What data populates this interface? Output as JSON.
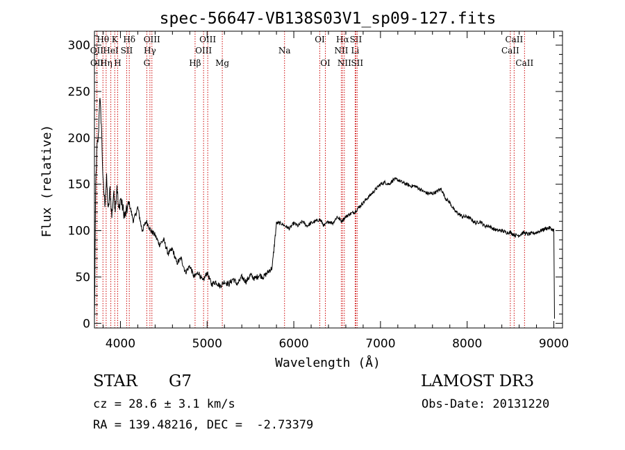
{
  "chart_data": {
    "type": "line",
    "title": "spec-56647-VB138S03V1_sp09-127.fits",
    "xlabel": "Wavelength (Å)",
    "ylabel": "Flux (relative)",
    "xlim": [
      3700,
      9100
    ],
    "ylim": [
      -5,
      315
    ],
    "x_ticks": [
      4000,
      5000,
      6000,
      7000,
      8000,
      9000
    ],
    "y_ticks": [
      0,
      50,
      100,
      150,
      200,
      250,
      300
    ],
    "grid": false,
    "line_color": "#000000",
    "marker_color": "#cc0000",
    "series": [
      {
        "x": [
          3700,
          3715,
          3730,
          3745,
          3760,
          3780,
          3800,
          3820,
          3840,
          3860,
          3880,
          3900,
          3920,
          3940,
          3960,
          3980,
          4000,
          4050,
          4100,
          4150,
          4200,
          4250,
          4300,
          4350,
          4400,
          4450,
          4500,
          4550,
          4600,
          4650,
          4700,
          4750,
          4800,
          4850,
          4900,
          4950,
          5000,
          5050,
          5100,
          5150,
          5200,
          5250,
          5300,
          5350,
          5400,
          5450,
          5500,
          5550,
          5600,
          5650,
          5700,
          5750,
          5800,
          5850,
          5900,
          5950,
          6000,
          6050,
          6100,
          6150,
          6200,
          6250,
          6300,
          6350,
          6400,
          6450,
          6500,
          6550,
          6600,
          6650,
          6700,
          6750,
          6800,
          6850,
          6900,
          6950,
          7000,
          7050,
          7100,
          7150,
          7200,
          7250,
          7300,
          7350,
          7400,
          7450,
          7500,
          7550,
          7600,
          7650,
          7700,
          7750,
          7800,
          7850,
          7900,
          7950,
          8000,
          8050,
          8100,
          8150,
          8200,
          8250,
          8300,
          8350,
          8400,
          8450,
          8500,
          8550,
          8600,
          8650,
          8700,
          8750,
          8800,
          8850,
          8900,
          8950,
          9000,
          9008
        ],
        "y": [
          2,
          150,
          190,
          200,
          245,
          215,
          150,
          130,
          155,
          120,
          145,
          115,
          140,
          125,
          150,
          120,
          135,
          115,
          130,
          110,
          125,
          100,
          110,
          100,
          95,
          85,
          90,
          75,
          80,
          65,
          70,
          55,
          62,
          50,
          55,
          45,
          55,
          42,
          45,
          40,
          45,
          42,
          48,
          42,
          50,
          45,
          52,
          48,
          52,
          50,
          55,
          60,
          108,
          108,
          105,
          102,
          108,
          105,
          110,
          105,
          108,
          110,
          112,
          105,
          110,
          108,
          115,
          110,
          115,
          118,
          120,
          125,
          130,
          135,
          140,
          145,
          150,
          152,
          150,
          155,
          155,
          152,
          150,
          148,
          148,
          145,
          142,
          140,
          140,
          142,
          145,
          135,
          130,
          122,
          118,
          115,
          115,
          112,
          108,
          110,
          105,
          105,
          102,
          100,
          100,
          98,
          98,
          95,
          95,
          98,
          96,
          97,
          98,
          100,
          102,
          103,
          100,
          5
        ]
      }
    ],
    "lines": [
      {
        "name": "Hθ",
        "x": 3798,
        "row": 1
      },
      {
        "name": "OII",
        "x": 3727,
        "row": 2
      },
      {
        "name": "OII",
        "x": 3729,
        "row": 3
      },
      {
        "name": "Hη",
        "x": 3835,
        "row": 3
      },
      {
        "name": "K",
        "x": 3934,
        "row": 1
      },
      {
        "name": "HeI",
        "x": 3889,
        "row": 2
      },
      {
        "name": "H",
        "x": 3968,
        "row": 3
      },
      {
        "name": "SII",
        "x": 4072,
        "row": 2
      },
      {
        "name": "Hδ",
        "x": 4102,
        "row": 1
      },
      {
        "name": "OIII",
        "x": 4363,
        "row": 1
      },
      {
        "name": "Hγ",
        "x": 4340,
        "row": 2
      },
      {
        "name": "G",
        "x": 4304,
        "row": 3
      },
      {
        "name": "Hβ",
        "x": 4861,
        "row": 3
      },
      {
        "name": "OIII",
        "x": 5007,
        "row": 1
      },
      {
        "name": "OIII",
        "x": 4959,
        "row": 2
      },
      {
        "name": "Mg",
        "x": 5175,
        "row": 3
      },
      {
        "name": "Na",
        "x": 5893,
        "row": 2
      },
      {
        "name": "OI",
        "x": 6300,
        "row": 1
      },
      {
        "name": "OI",
        "x": 6364,
        "row": 3
      },
      {
        "name": "Hα",
        "x": 6563,
        "row": 1
      },
      {
        "name": "NII",
        "x": 6548,
        "row": 2
      },
      {
        "name": "NII",
        "x": 6583,
        "row": 3
      },
      {
        "name": "SII",
        "x": 6716,
        "row": 1
      },
      {
        "name": "Li",
        "x": 6708,
        "row": 2
      },
      {
        "name": "SII",
        "x": 6731,
        "row": 3
      },
      {
        "name": "CaII",
        "x": 8542,
        "row": 1
      },
      {
        "name": "CaII",
        "x": 8498,
        "row": 2
      },
      {
        "name": "CaII",
        "x": 8662,
        "row": 3
      }
    ]
  },
  "info": {
    "class": "STAR",
    "subclass": "G7",
    "cz": "cz = 28.6 ± 3.1 km/s",
    "coords": "RA = 139.48216, DEC =  -2.73379",
    "survey": "LAMOST DR3",
    "obs_date": "Obs-Date: 20131220"
  }
}
